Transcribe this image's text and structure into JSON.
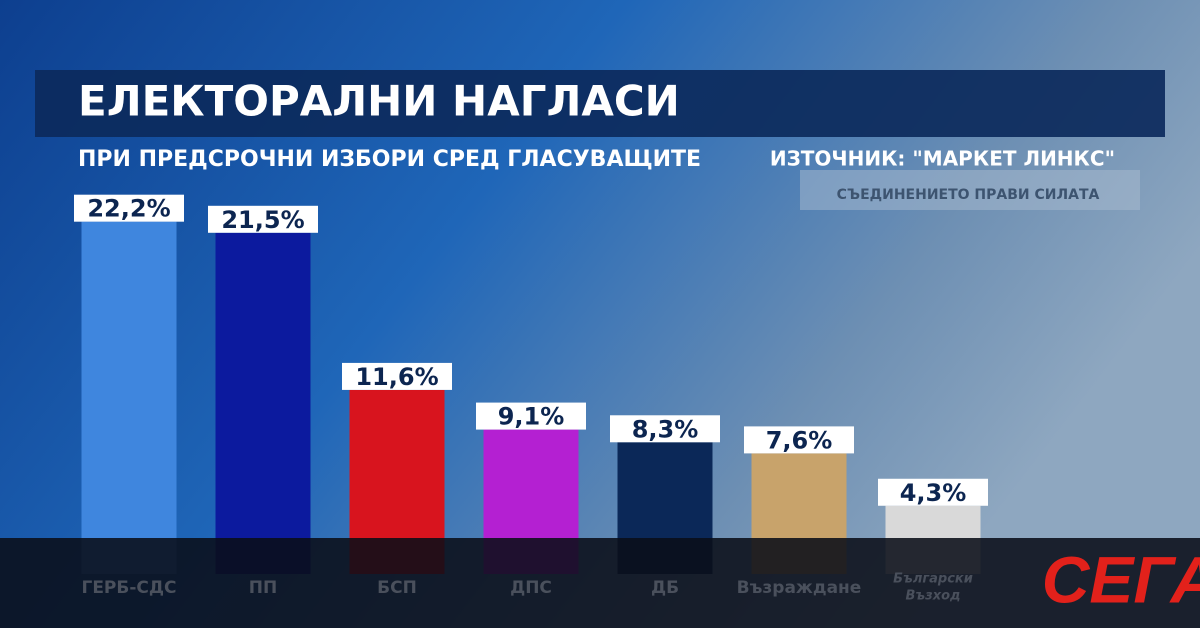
{
  "chart_data": {
    "type": "bar",
    "title": "ЕЛЕКТОРАЛНИ НАГЛАСИ",
    "subtitle": "ПРИ ПРЕДСРОЧНИ ИЗБОРИ СРЕД ГЛАСУВАЩИТЕ",
    "source": "ИЗТОЧНИК: \"МАРКЕТ ЛИНКС\"",
    "background_text": "СЪЕДИНЕНИЕТО ПРАВИ СИЛАТА",
    "logo": "СЕГА",
    "categories": [
      "ГЕРБ-СДС",
      "ПП",
      "БСП",
      "ДПС",
      "ДБ",
      "Възраждане",
      [
        "Български",
        "Възход"
      ]
    ],
    "values": [
      22.2,
      21.5,
      11.6,
      9.1,
      8.3,
      7.6,
      4.3
    ],
    "value_labels": [
      "22,2%",
      "21,5%",
      "11,6%",
      "9,1%",
      "8,3%",
      "7,6%",
      "4,3%"
    ],
    "colors": [
      "#3f86de",
      "#0c1a9e",
      "#d8141e",
      "#b420d2",
      "#0b2858",
      "#c8a36b",
      "#d9d9d9"
    ]
  }
}
